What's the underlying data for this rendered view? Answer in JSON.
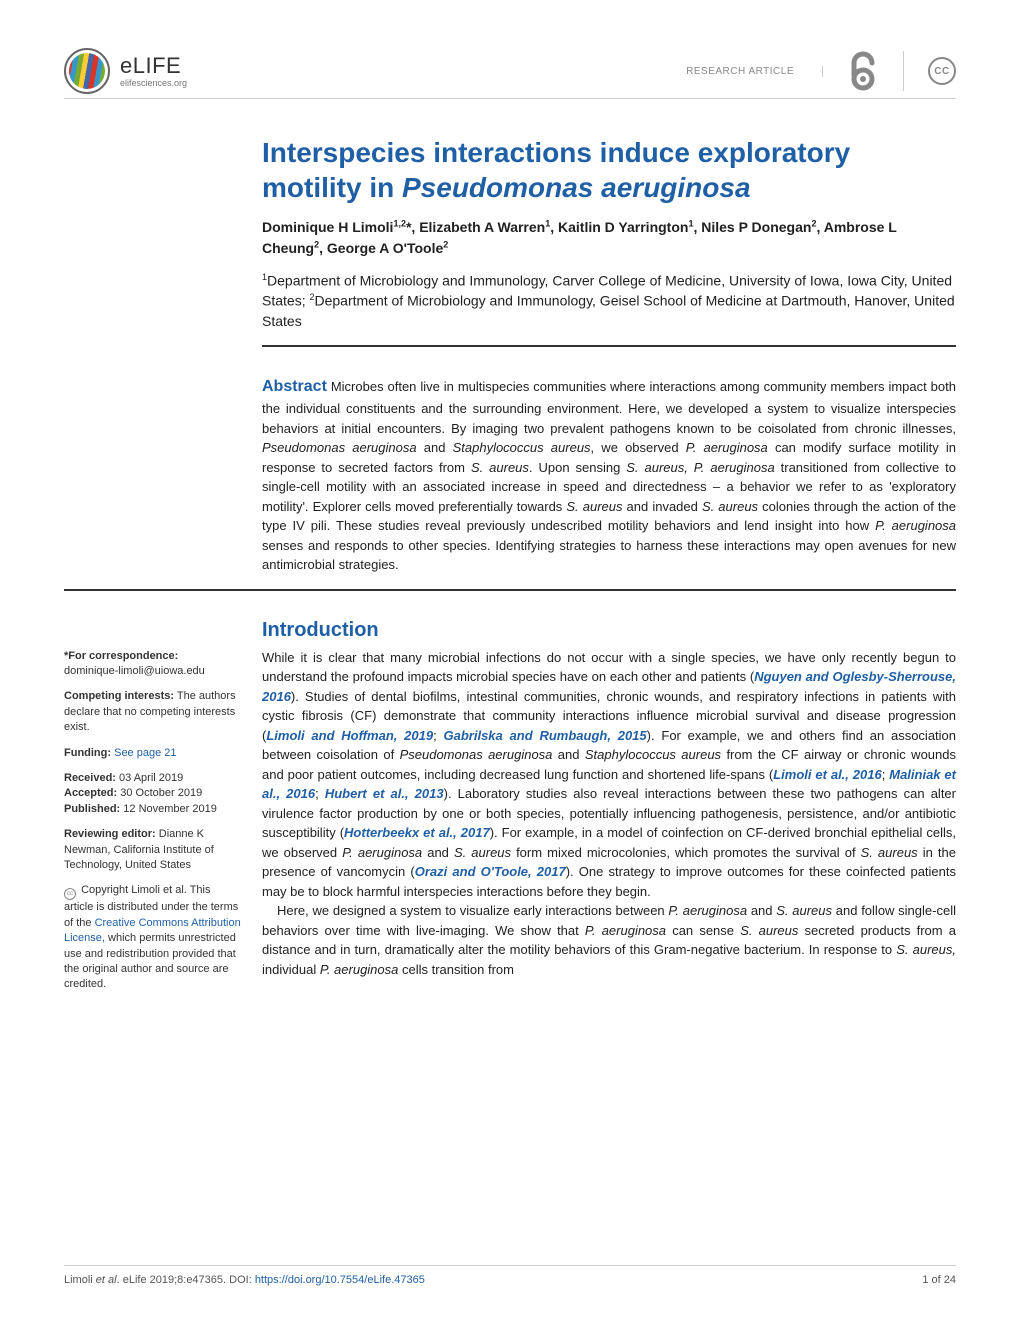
{
  "header": {
    "logo_name": "eLIFE",
    "logo_sub": "elifesciences.org",
    "article_type": "RESEARCH ARTICLE"
  },
  "title_html": "Interspecies interactions induce exploratory motility in <em>Pseudomonas aeruginosa</em>",
  "authors_html": "Dominique H Limoli<sup>1,2</sup>*, Elizabeth A Warren<sup>1</sup>, Kaitlin D Yarrington<sup>1</sup>, Niles P Donegan<sup>2</sup>, Ambrose L Cheung<sup>2</sup>, George A O'Toole<sup>2</sup>",
  "affiliations_html": "<sup>1</sup>Department of Microbiology and Immunology, Carver College of Medicine, University of Iowa, Iowa City, United States; <sup>2</sup>Department of Microbiology and Immunology, Geisel School of Medicine at Dartmouth, Hanover, United States",
  "abstract_html": "<span class=\"abstract-label\">Abstract</span> Microbes often live in multispecies communities where interactions among community members impact both the individual constituents and the surrounding environment. Here, we developed a system to visualize interspecies behaviors at initial encounters. By imaging two prevalent pathogens known to be coisolated from chronic illnesses, <em>Pseudomonas aeruginosa</em> and <em>Staphylococcus aureus</em>, we observed <em>P. aeruginosa</em> can modify surface motility in response to secreted factors from <em>S. aureus</em>. Upon sensing <em>S. aureus, P. aeruginosa</em> transitioned from collective to single-cell motility with an associated increase in speed and directedness – a behavior we refer to as 'exploratory motility'. Explorer cells moved preferentially towards <em>S. aureus</em> and invaded <em>S. aureus</em> colonies through the action of the type IV pili. These studies reveal previously undescribed motility behaviors and lend insight into how <em>P. aeruginosa</em> senses and responds to other species. Identifying strategies to harness these interactions may open avenues for new antimicrobial strategies.",
  "sidebar": {
    "correspondence_label": "*For correspondence:",
    "correspondence_email": "dominique-limoli@uiowa.edu",
    "competing_label": "Competing interests:",
    "competing_text": " The authors declare that no competing interests exist.",
    "funding_label": "Funding:",
    "funding_link": " See page 21",
    "received_label": "Received:",
    "received_date": " 03 April 2019",
    "accepted_label": "Accepted:",
    "accepted_date": " 30 October 2019",
    "published_label": "Published:",
    "published_date": " 12 November 2019",
    "reviewing_label": "Reviewing editor:",
    "reviewing_text": "  Dianne K Newman, California Institute of Technology, United States",
    "copyright_text": "Copyright Limoli et al. This article is distributed under the terms of the ",
    "license_link": "Creative Commons Attribution License,",
    "copyright_tail": " which permits unrestricted use and redistribution provided that the original author and source are credited."
  },
  "intro": {
    "heading": "Introduction",
    "body_html": "While it is clear that many microbial infections do not occur with a single species, we have only recently begun to understand the profound impacts microbial species have on each other and patients (<span class=\"ref\">Nguyen and Oglesby-Sherrouse, 2016</span>). Studies of dental biofilms, intestinal communities, chronic wounds, and respiratory infections in patients with cystic fibrosis (CF) demonstrate that community interactions influence microbial survival and disease progression (<span class=\"ref\">Limoli and Hoffman, 2019</span>; <span class=\"ref\">Gabrilska and Rumbaugh, 2015</span>). For example, we and others find an association between coisolation of <em>Pseudomonas aeruginosa</em> and <em>Staphylococcus aureus</em> from the CF airway or chronic wounds and poor patient outcomes, including decreased lung function and shortened life-spans (<span class=\"ref\">Limoli et al., 2016</span>; <span class=\"ref\">Maliniak et al., 2016</span>; <span class=\"ref\">Hubert et al., 2013</span>). Laboratory studies also reveal interactions between these two pathogens can alter virulence factor production by one or both species, potentially influencing pathogenesis, persistence, and/or antibiotic susceptibility (<span class=\"ref\">Hotterbeekx et al., 2017</span>). For example, in a model of coinfection on CF-derived bronchial epithelial cells, we observed <em>P. aeruginosa</em> and <em>S. aureus</em> form mixed microcolonies, which promotes the survival of <em>S. aureus</em> in the presence of vancomycin (<span class=\"ref\">Orazi and O'Toole, 2017</span>). One strategy to improve outcomes for these coinfected patients may be to block harmful interspecies interactions before they begin.<br>&nbsp;&nbsp;&nbsp;&nbsp;Here, we designed a system to visualize early interactions between <em>P. aeruginosa</em> and <em>S. aureus</em> and follow single-cell behaviors over time with live-imaging. We show that <em>P. aeruginosa</em> can sense <em>S. aureus</em> secreted products from a distance and in turn, dramatically alter the motility behaviors of this Gram-negative bacterium. In response to <em>S. aureus,</em> individual <em>P. aeruginosa</em> cells transition from"
  },
  "footer": {
    "citation_html": "Limoli <em>et al</em>. eLife 2019;8:e47365. DOI: ",
    "doi": "https://doi.org/10.7554/eLife.47365",
    "page": "1 of 24"
  },
  "colors": {
    "accent": "#1f5fa6",
    "text": "#212121",
    "muted": "#888888",
    "rule": "#333333"
  }
}
